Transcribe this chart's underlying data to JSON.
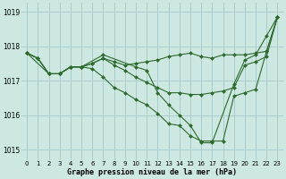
{
  "background_color": "#cce8e0",
  "grid_color": "#aacccc",
  "line_color": "#2d6a2d",
  "marker_color": "#2d6a2d",
  "xlabel": "Graphe pression niveau de la mer (hPa)",
  "ylim": [
    1014.7,
    1019.25
  ],
  "xlim": [
    -0.5,
    23.5
  ],
  "yticks": [
    1015,
    1016,
    1017,
    1018,
    1019
  ],
  "xtick_labels": [
    "0",
    "1",
    "2",
    "3",
    "4",
    "5",
    "6",
    "7",
    "8",
    "9",
    "10",
    "11",
    "12",
    "13",
    "14",
    "15",
    "16",
    "17",
    "18",
    "19",
    "20",
    "21",
    "22",
    "23"
  ],
  "series": [
    {
      "x": [
        0,
        1,
        2,
        3,
        4,
        5,
        6,
        7,
        8,
        9,
        10,
        11,
        12,
        13,
        14,
        15,
        16,
        17,
        18,
        19,
        20,
        21,
        22,
        23
      ],
      "y": [
        1017.8,
        1017.65,
        1017.2,
        1017.2,
        1017.4,
        1017.4,
        1017.5,
        1017.65,
        1017.55,
        1017.45,
        1017.5,
        1017.55,
        1017.6,
        1017.7,
        1017.75,
        1017.8,
        1017.7,
        1017.65,
        1017.75,
        1017.75,
        1017.75,
        1017.8,
        1017.85,
        1018.85
      ]
    },
    {
      "x": [
        0,
        1,
        2,
        3,
        4,
        5,
        6,
        7,
        8,
        9,
        10,
        11,
        12,
        13,
        14,
        15,
        16,
        17,
        18,
        19,
        20,
        21,
        22,
        23
      ],
      "y": [
        1017.8,
        1017.65,
        1017.2,
        1017.2,
        1017.4,
        1017.4,
        1017.5,
        1017.65,
        1017.45,
        1017.3,
        1017.1,
        1016.95,
        1016.8,
        1016.65,
        1016.65,
        1016.6,
        1016.6,
        1016.65,
        1016.7,
        1016.8,
        1017.45,
        1017.55,
        1017.7,
        1018.85
      ]
    },
    {
      "x": [
        0,
        1,
        2,
        3,
        4,
        5,
        6,
        7,
        8,
        9,
        10,
        11,
        12,
        13,
        14,
        15,
        16,
        17,
        18,
        19,
        20,
        21,
        22,
        23
      ],
      "y": [
        1017.8,
        1017.65,
        1017.2,
        1017.2,
        1017.4,
        1017.4,
        1017.35,
        1017.1,
        1016.8,
        1016.65,
        1016.45,
        1016.3,
        1016.05,
        1015.75,
        1015.7,
        1015.4,
        1015.25,
        1015.25,
        1015.25,
        1016.55,
        1016.65,
        1016.75,
        1017.85,
        1018.85
      ]
    },
    {
      "x": [
        0,
        2,
        3,
        4,
        5,
        7,
        10,
        11,
        12,
        13,
        14,
        15,
        16,
        17,
        19,
        20,
        21,
        22,
        23
      ],
      "y": [
        1017.8,
        1017.2,
        1017.2,
        1017.4,
        1017.4,
        1017.75,
        1017.4,
        1017.3,
        1016.65,
        1016.3,
        1016.0,
        1015.7,
        1015.2,
        1015.2,
        1016.9,
        1017.6,
        1017.75,
        1018.3,
        1018.85
      ]
    }
  ]
}
